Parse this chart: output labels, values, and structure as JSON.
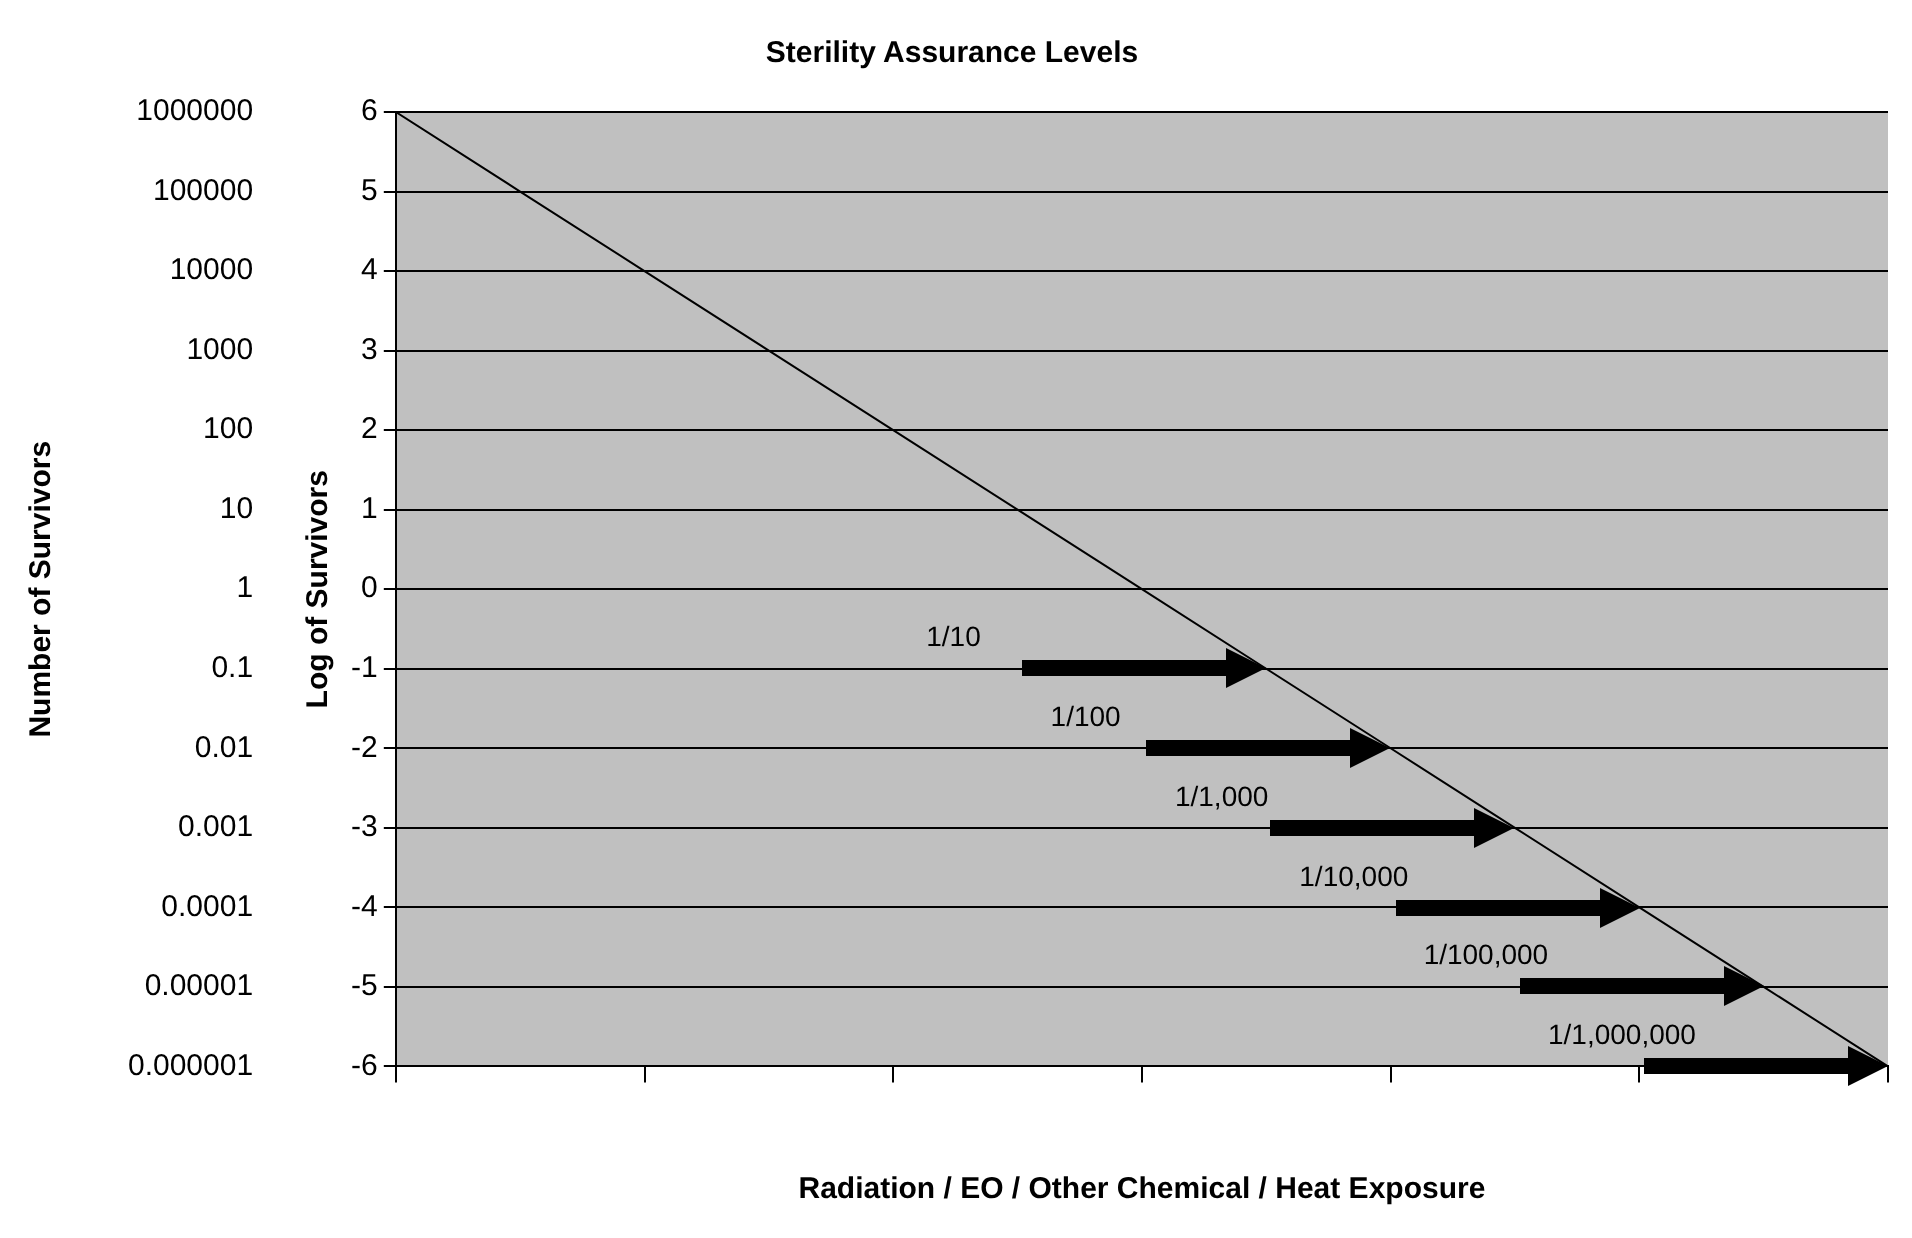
{
  "chart_data": {
    "type": "line",
    "title": "Sterility Assurance Levels",
    "xlabel": "Radiation / EO / Other Chemical / Heat Exposure",
    "ylabel": "Log of Survivors",
    "y2label": "Number of Survivors",
    "categories": [
      null,
      null,
      null,
      null,
      null,
      null,
      null,
      null,
      null,
      null,
      null,
      null,
      null
    ],
    "series": [
      {
        "color": "#000000",
        "values": [
          6,
          5,
          4,
          3,
          2,
          1,
          0,
          -1,
          -2,
          -3,
          -4,
          -5,
          -6
        ]
      }
    ],
    "ylim": [
      -6,
      6
    ],
    "yticks": [
      -6,
      -5,
      -4,
      -3,
      -2,
      -1,
      0,
      1,
      2,
      3,
      4,
      5,
      6
    ],
    "y2lim": [
      1e-06,
      1000000
    ],
    "y2ticks": [
      1000000,
      100000,
      10000,
      1000,
      100,
      10,
      1,
      0.1,
      0.01,
      0.001,
      0.0001,
      {
        "value": 1e-05,
        "label": "0.00001"
      },
      {
        "value": 1e-06,
        "label": "0.000001"
      }
    ],
    "log": "y2",
    "annotations": [
      "1/10",
      "1/100",
      "1/1,000",
      "1/10,000",
      "1/100,000",
      "1/1,000,000"
    ],
    "grid": "y",
    "legend": false,
    "marker": "none",
    "line_style": "solid",
    "tick_labels": "y"
  }
}
